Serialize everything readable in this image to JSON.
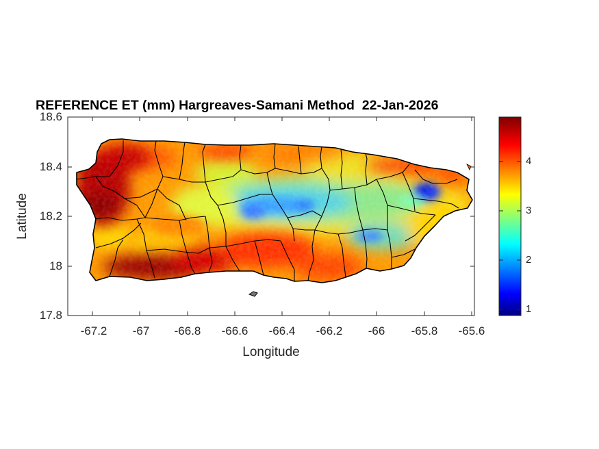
{
  "figure": {
    "title": "REFERENCE ET (mm) Hargreaves-Samani Method  22-Jan-2026",
    "xlabel": "Longitude",
    "ylabel": "Latitude"
  },
  "map": {
    "region": "Puerto Rico",
    "variable": "Reference evapotranspiration (mm)",
    "colormap": "jet",
    "background": "#ffffff",
    "boundary_color": "#000000",
    "lon_range": [
      -67.3,
      -65.59
    ],
    "lat_range": [
      17.8,
      18.6
    ],
    "xticks": [
      "-67.2",
      "-67",
      "-66.8",
      "-66.6",
      "-66.4",
      "-66.2",
      "-66",
      "-65.8",
      "-65.6"
    ],
    "yticks": [
      "18.6",
      "18.4",
      "18.2",
      "18",
      "17.8"
    ],
    "hotspots_high": [
      "southwest coast",
      "west coast",
      "north coast"
    ],
    "hotspots_low": [
      "central mountains",
      "east-northeast (El Yunque)"
    ]
  },
  "colorbar": {
    "range": [
      0.9,
      4.9
    ],
    "ticks": [
      "4",
      "3",
      "2",
      "1"
    ]
  }
}
